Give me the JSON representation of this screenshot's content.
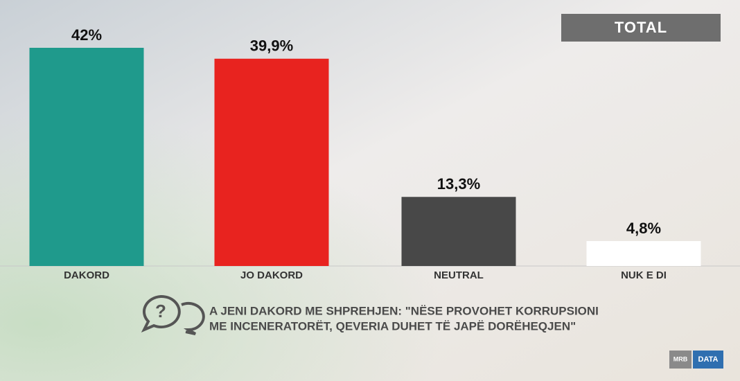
{
  "chart_data": {
    "type": "bar",
    "title": "TOTAL",
    "categories": [
      "DAKORD",
      "JO DAKORD",
      "NEUTRAL",
      "NUK E DI"
    ],
    "values": [
      42,
      39.9,
      13.3,
      4.8
    ],
    "value_labels": [
      "42%",
      "39,9%",
      "13,3%",
      "4,8%"
    ],
    "colors": [
      "#1f9a8c",
      "#e8231f",
      "#484848",
      "#ffffff"
    ],
    "question_lines": [
      "A JENI DAKORD ME SHPREHJEN: \"NËSE PROVOHET KORRUPSIONI",
      "ME INCENERATORËT, QEVERIA DUHET TË JAPË DORËHEQJEN\""
    ],
    "logos": [
      "MRB",
      "DATA"
    ]
  }
}
